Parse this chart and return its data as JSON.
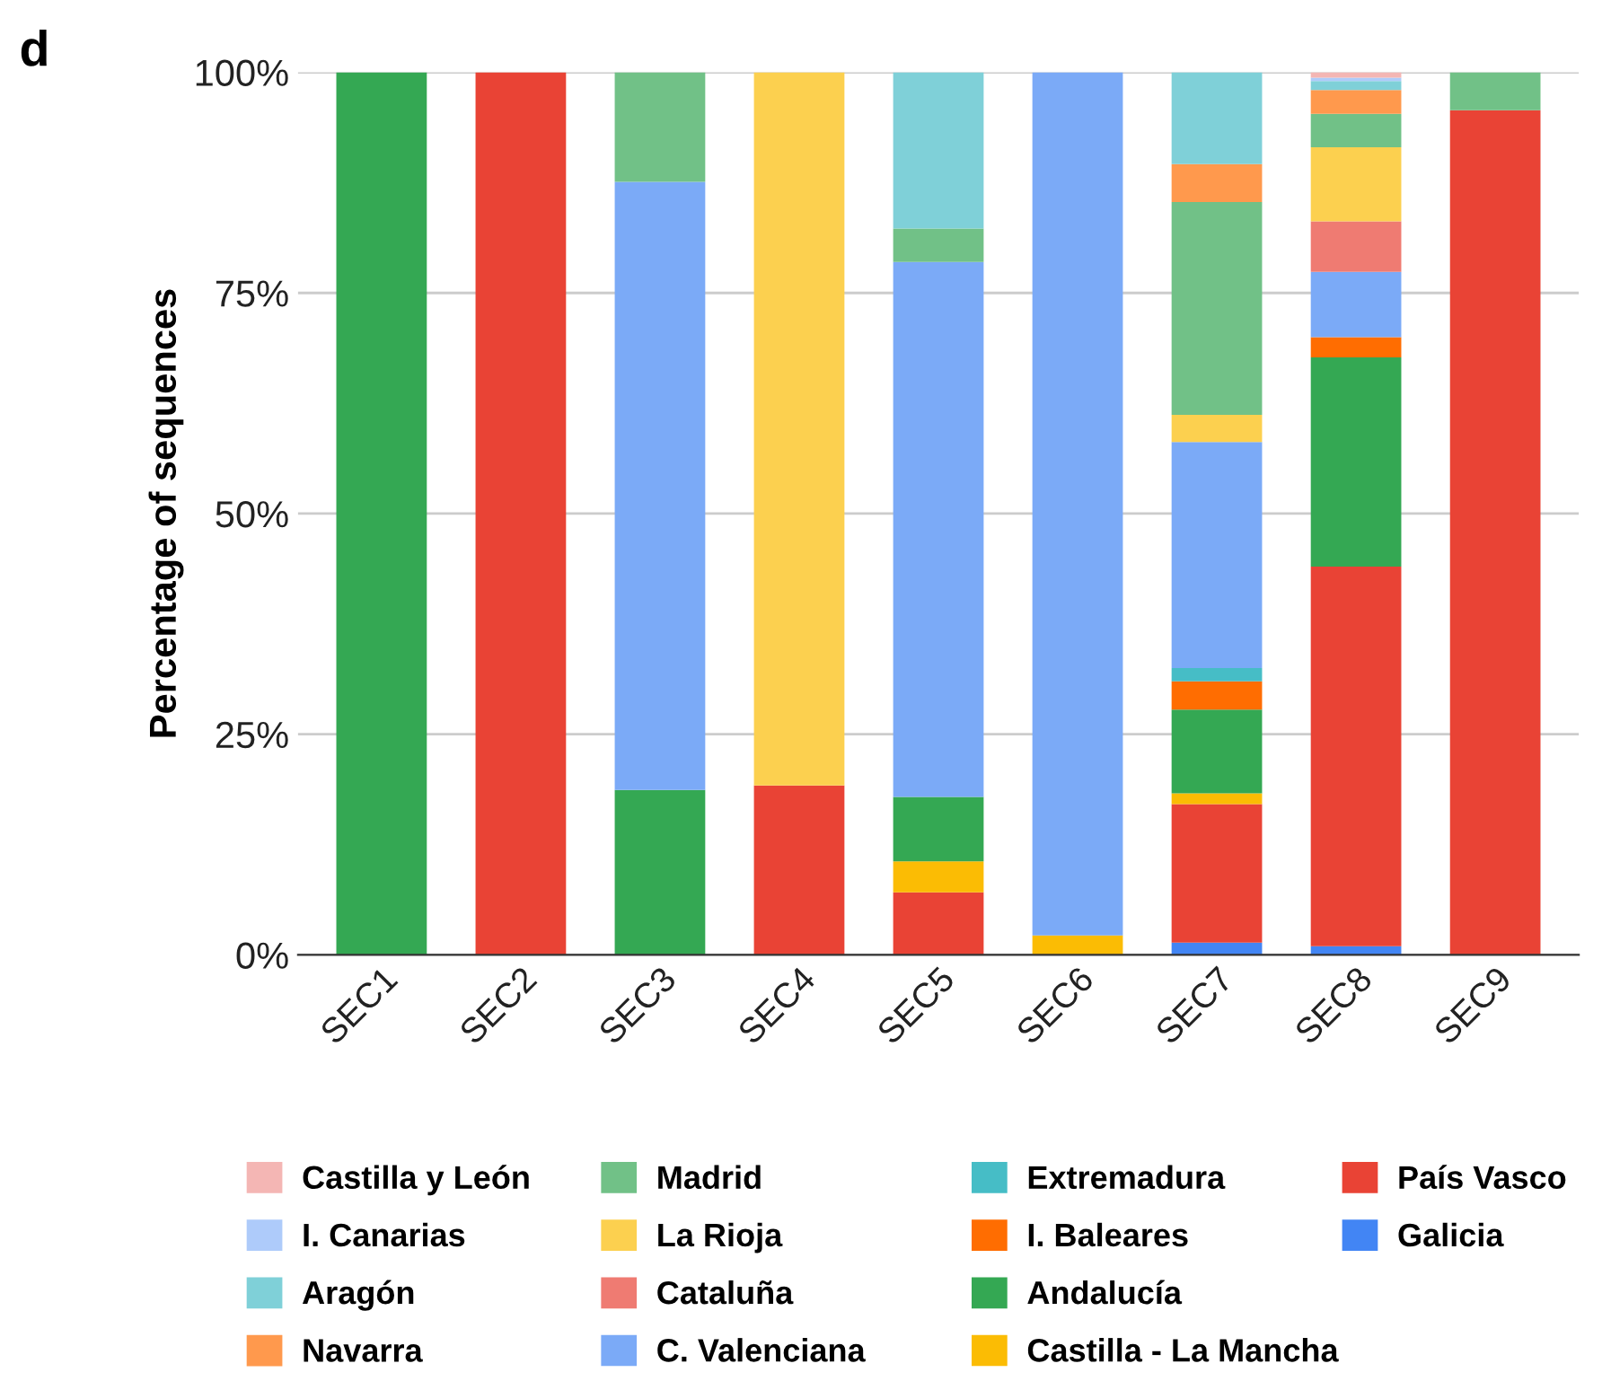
{
  "chart_data": {
    "type": "bar",
    "stacked": true,
    "ylabel": "Percentage of sequences",
    "annotations": [
      "d"
    ],
    "categories": [
      "SEC1",
      "SEC2",
      "SEC3",
      "SEC4",
      "SEC5",
      "SEC6",
      "SEC7",
      "SEC8",
      "SEC9"
    ],
    "ylim": [
      0,
      100
    ],
    "yticks": [
      {
        "value": 0,
        "label": "0%"
      },
      {
        "value": 25,
        "label": "25%"
      },
      {
        "value": 50,
        "label": "50%"
      },
      {
        "value": 75,
        "label": "75%"
      },
      {
        "value": 100,
        "label": "100%"
      }
    ],
    "grid": "y",
    "legend": "bottom",
    "series": [
      {
        "name": "Galicia",
        "color": "#4285f4",
        "values": [
          null,
          null,
          null,
          null,
          null,
          null,
          1.4,
          1.0,
          null
        ]
      },
      {
        "name": "País Vasco",
        "color": "#e94335",
        "values": [
          null,
          100,
          null,
          19.2,
          7.1,
          null,
          15.7,
          43.0,
          95.7
        ]
      },
      {
        "name": "Castilla - La Mancha",
        "color": "#fbbc04",
        "values": [
          null,
          null,
          null,
          null,
          3.5,
          2.2,
          1.2,
          null,
          null
        ]
      },
      {
        "name": "Andalucía",
        "color": "#34a853",
        "values": [
          100,
          null,
          18.7,
          null,
          7.3,
          null,
          9.5,
          23.7,
          null
        ]
      },
      {
        "name": "I. Baleares",
        "color": "#ff6d01",
        "values": [
          null,
          null,
          null,
          null,
          null,
          null,
          3.2,
          2.3,
          null
        ]
      },
      {
        "name": "Extremadura",
        "color": "#46bdc6",
        "values": [
          null,
          null,
          null,
          null,
          null,
          null,
          1.5,
          null,
          null
        ]
      },
      {
        "name": "C. Valenciana",
        "color": "#7baaf7",
        "values": [
          null,
          null,
          68.9,
          null,
          60.6,
          97.8,
          25.6,
          7.4,
          null
        ]
      },
      {
        "name": "Cataluña",
        "color": "#ef7b72",
        "values": [
          null,
          null,
          null,
          null,
          null,
          null,
          null,
          5.7,
          null
        ]
      },
      {
        "name": "La Rioja",
        "color": "#fcd04f",
        "values": [
          null,
          null,
          null,
          80.8,
          null,
          null,
          3.1,
          8.4,
          null
        ]
      },
      {
        "name": "Madrid",
        "color": "#71c187",
        "values": [
          null,
          null,
          12.4,
          null,
          3.8,
          null,
          24.1,
          3.8,
          4.3
        ]
      },
      {
        "name": "Navarra",
        "color": "#ff994d",
        "values": [
          null,
          null,
          null,
          null,
          null,
          null,
          4.3,
          2.7,
          null
        ]
      },
      {
        "name": "Aragón",
        "color": "#7fd0d8",
        "values": [
          null,
          null,
          null,
          null,
          17.7,
          null,
          10.4,
          1.0,
          null
        ]
      },
      {
        "name": "I. Canarias",
        "color": "#aecbfa",
        "values": [
          null,
          null,
          null,
          null,
          null,
          null,
          null,
          0.4,
          null
        ]
      },
      {
        "name": "Castilla y León",
        "color": "#f4b6b4",
        "values": [
          null,
          null,
          null,
          null,
          null,
          null,
          null,
          0.6,
          null
        ]
      }
    ]
  }
}
